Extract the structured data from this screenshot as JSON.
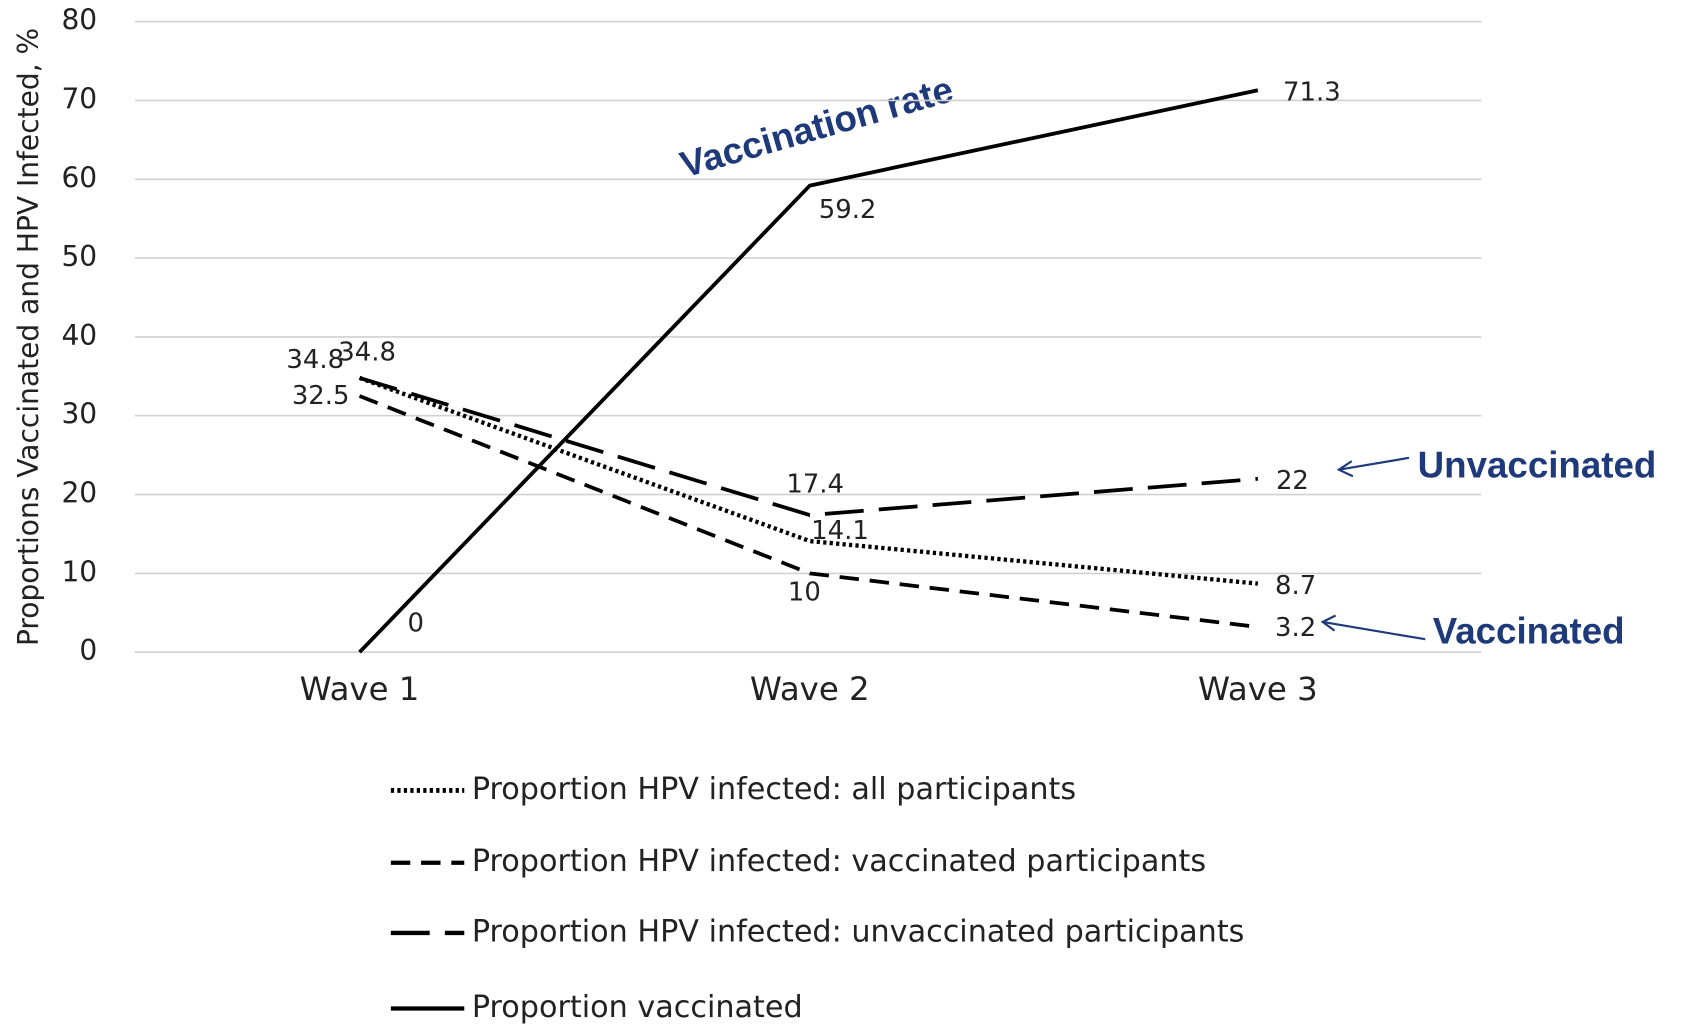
{
  "chart_data": {
    "type": "line",
    "ylabel": "Proportions Vaccinated and HPV Infected, %",
    "categories": [
      "Wave 1",
      "Wave 2",
      "Wave 3"
    ],
    "ylim": [
      0,
      80
    ],
    "yticks": [
      0,
      10,
      20,
      30,
      40,
      50,
      60,
      70,
      80
    ],
    "grid": true,
    "series": [
      {
        "name": "Proportion HPV infected: all participants",
        "color": "#000000",
        "linestyle": "dotted",
        "values": [
          34.8,
          14.1,
          8.7
        ]
      },
      {
        "name": "Proportion HPV infected: vaccinated participants",
        "color": "#000000",
        "linestyle": "dashed",
        "values": [
          32.5,
          10,
          3.2
        ]
      },
      {
        "name": "Proportion HPV infected: unvaccinated participants",
        "color": "#000000",
        "linestyle": "longdash",
        "values": [
          34.8,
          17.4,
          22
        ]
      },
      {
        "name": "Proportion vaccinated",
        "color": "#000000",
        "linestyle": "solid",
        "values": [
          0,
          59.2,
          71.3
        ]
      }
    ],
    "annotations": [
      "Vaccination rate",
      "Unvaccinated",
      "Vaccinated"
    ]
  }
}
